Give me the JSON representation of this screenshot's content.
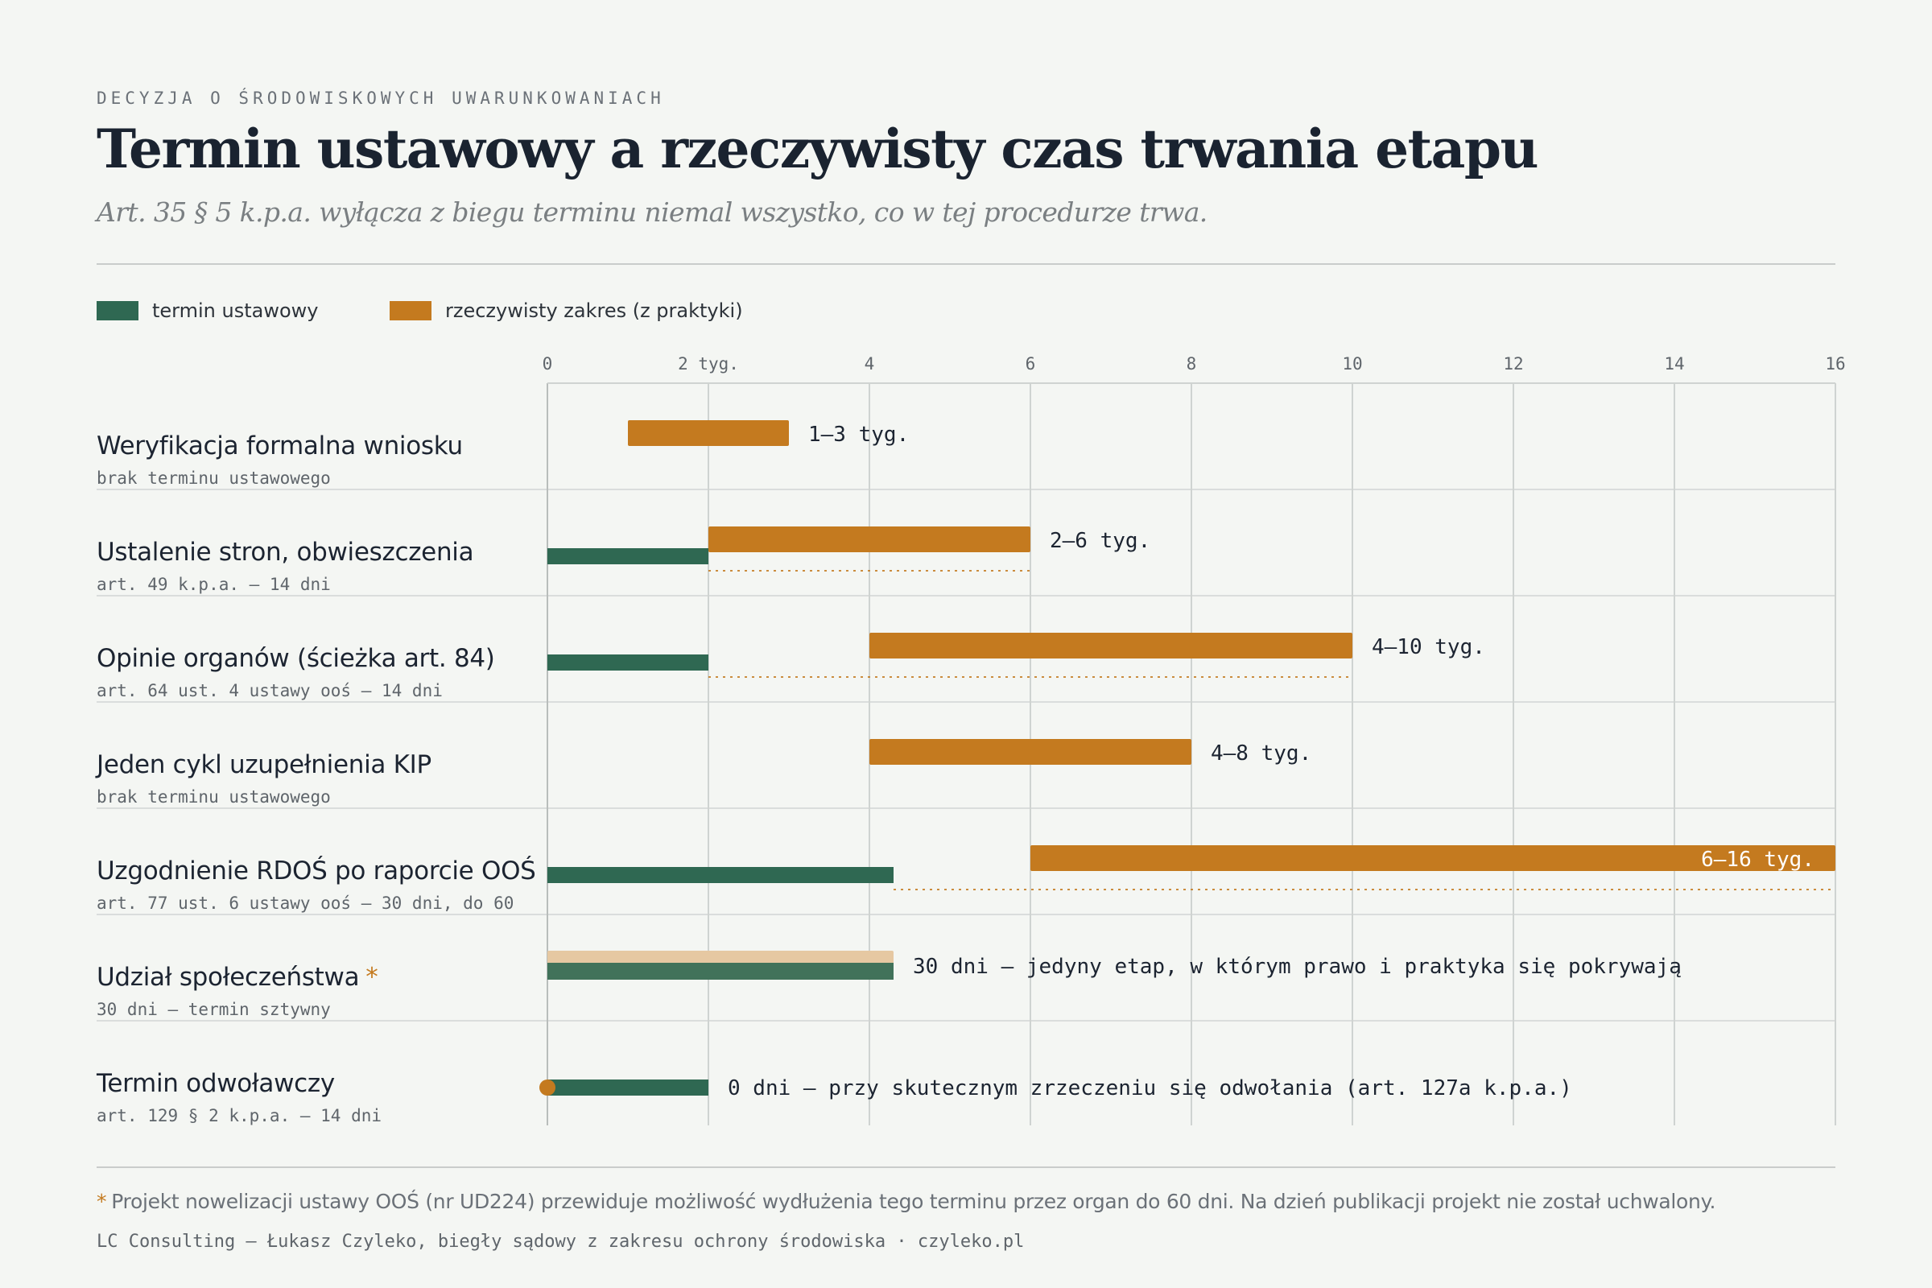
{
  "header": {
    "kicker": "DECYZJA O ŚRODOWISKOWYCH UWARUNKOWANIACH",
    "title": "Termin ustawowy a rzeczywisty czas trwania etapu",
    "subtitle": "Art. 35 § 5 k.p.a. wyłącza z biegu terminu niemal wszystko, co w tej procedurze trwa."
  },
  "colors": {
    "statutory": "#2f6852",
    "actual": "#c47a1f",
    "actual_light": "#e6c8a2",
    "grid": "#cfd3d1",
    "dotted": "#c47a1f"
  },
  "chart_data": {
    "type": "bar",
    "orientation": "horizontal",
    "xlim": [
      0,
      16
    ],
    "x_unit": "tyg.",
    "tick_labels": [
      "0",
      "2 tyg.",
      "4",
      "6",
      "8",
      "10",
      "12",
      "14",
      "16"
    ],
    "ticks": [
      0,
      2,
      4,
      6,
      8,
      10,
      12,
      14,
      16
    ],
    "legend": {
      "placement": "top-left",
      "entries": [
        {
          "name": "termin ustawowy",
          "color": "#2f6852"
        },
        {
          "name": "rzeczywisty zakres (z praktyki)",
          "color": "#c47a1f"
        }
      ]
    },
    "series": [
      {
        "name": "termin ustawowy"
      },
      {
        "name": "rzeczywisty zakres (z praktyki)"
      }
    ],
    "grid": true,
    "categories": [
      {
        "label": "Weryfikacja formalna wniosku",
        "sub": "brak terminu ustawowego",
        "statutory": null,
        "actual": [
          1,
          3
        ],
        "value_label": "1–3 tyg.",
        "label_inside": false,
        "star": false
      },
      {
        "label": "Ustalenie stron, obwieszczenia",
        "sub": "art. 49 k.p.a. — 14 dni",
        "statutory": 2,
        "actual": [
          2,
          6
        ],
        "value_label": "2–6 tyg.",
        "label_inside": false,
        "star": false
      },
      {
        "label": "Opinie organów (ścieżka art. 84)",
        "sub": "art. 64 ust. 4 ustawy ooś — 14 dni",
        "statutory": 2,
        "actual": [
          4,
          10
        ],
        "value_label": "4–10 tyg.",
        "label_inside": false,
        "star": false
      },
      {
        "label": "Jeden cykl uzupełnienia KIP",
        "sub": "brak terminu ustawowego",
        "statutory": null,
        "actual": [
          4,
          8
        ],
        "value_label": "4–8 tyg.",
        "label_inside": false,
        "star": false
      },
      {
        "label": "Uzgodnienie RDOŚ po raporcie OOŚ",
        "sub": "art. 77 ust. 6 ustawy ooś — 30 dni, do 60",
        "statutory": 4.3,
        "actual": [
          6,
          16
        ],
        "value_label": "6–16 tyg.",
        "label_inside": true,
        "star": false
      },
      {
        "label": "Udział społeczeństwa",
        "sub": "30 dni — termin sztywny",
        "statutory": 4.3,
        "actual": [
          0,
          4.3
        ],
        "value_label": "30 dni — jedyny etap, w którym prawo i praktyka się pokrywają",
        "label_inside": false,
        "star": true
      },
      {
        "label": "Termin odwoławczy",
        "sub": "art. 129 § 2 k.p.a. — 14 dni",
        "statutory": 2,
        "actual": [
          0,
          0
        ],
        "value_label": "0 dni — przy skutecznym zrzeczeniu się odwołania (art. 127a k.p.a.)",
        "label_inside": false,
        "star": false
      }
    ]
  },
  "footer": {
    "star": "*",
    "footnote": "Projekt nowelizacji ustawy OOŚ (nr UD224) przewiduje możliwość wydłużenia tego terminu przez organ do 60 dni. Na dzień publikacji projekt nie został uchwalony.",
    "credit": "LC Consulting — Łukasz Czyleko, biegły sądowy z zakresu ochrony środowiska · czyleko.pl"
  }
}
